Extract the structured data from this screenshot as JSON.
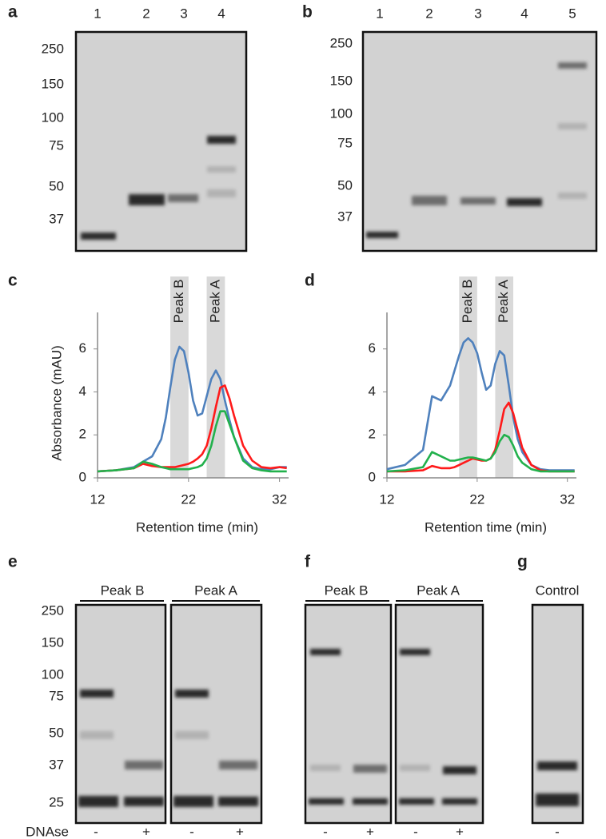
{
  "panels": {
    "a": {
      "label": "a",
      "lanes": [
        "1",
        "2",
        "3",
        "4"
      ],
      "markers": [
        "250",
        "150",
        "100",
        "75",
        "50",
        "37"
      ]
    },
    "b": {
      "label": "b",
      "lanes": [
        "1",
        "2",
        "3",
        "4",
        "5"
      ],
      "markers": [
        "250",
        "150",
        "100",
        "75",
        "50",
        "37"
      ]
    },
    "e": {
      "label": "e",
      "groups": [
        "Peak B",
        "Peak A"
      ],
      "markers": [
        "250",
        "150",
        "100",
        "75",
        "50",
        "37",
        "25"
      ],
      "row_label": "DNAse",
      "treatments": [
        "-",
        "+",
        "-",
        "+"
      ]
    },
    "f": {
      "label": "f",
      "groups": [
        "Peak B",
        "Peak A"
      ],
      "treatments": [
        "-",
        "+",
        "-",
        "+"
      ]
    },
    "g": {
      "label": "g",
      "groups": [
        "Control"
      ],
      "treatments": [
        "-"
      ]
    }
  },
  "chart_data": [
    {
      "type": "line",
      "panel_label": "c",
      "xlabel": "Retention time (min)",
      "ylabel": "Absorbance (mAU)",
      "x": [
        12,
        14,
        16,
        17,
        18,
        19,
        19.5,
        20,
        20.5,
        21,
        21.5,
        22,
        22.5,
        23,
        23.5,
        24,
        24.5,
        25,
        25.5,
        26,
        26.5,
        27,
        28,
        29,
        30,
        31,
        32,
        32.8
      ],
      "xlim": [
        12,
        33
      ],
      "xticks": [
        12,
        22,
        32
      ],
      "ylim": [
        0,
        7.7
      ],
      "yticks": [
        0,
        2,
        4,
        6
      ],
      "bands": [
        {
          "label": "Peak B",
          "x": [
            20,
            22
          ]
        },
        {
          "label": "Peak A",
          "x": [
            24,
            26
          ]
        }
      ],
      "series": [
        {
          "color": "#4f81bd",
          "values": [
            0.3,
            0.35,
            0.5,
            0.75,
            1.0,
            1.8,
            2.8,
            4.2,
            5.5,
            6.1,
            5.9,
            4.9,
            3.6,
            2.9,
            3.0,
            3.8,
            4.6,
            5.0,
            4.6,
            3.6,
            2.7,
            1.9,
            0.9,
            0.5,
            0.4,
            0.4,
            0.5,
            0.5
          ]
        },
        {
          "color": "#ff1a1a",
          "values": [
            0.3,
            0.35,
            0.45,
            0.65,
            0.55,
            0.5,
            0.5,
            0.5,
            0.5,
            0.55,
            0.6,
            0.65,
            0.75,
            0.9,
            1.1,
            1.5,
            2.3,
            3.3,
            4.2,
            4.3,
            3.7,
            2.9,
            1.5,
            0.8,
            0.5,
            0.45,
            0.5,
            0.45
          ]
        },
        {
          "color": "#22b14c",
          "values": [
            0.3,
            0.35,
            0.45,
            0.75,
            0.65,
            0.5,
            0.45,
            0.4,
            0.4,
            0.4,
            0.4,
            0.4,
            0.45,
            0.5,
            0.6,
            0.9,
            1.5,
            2.4,
            3.1,
            3.1,
            2.5,
            1.9,
            0.8,
            0.45,
            0.35,
            0.3,
            0.3,
            0.3
          ]
        }
      ]
    },
    {
      "type": "line",
      "panel_label": "d",
      "xlabel": "Retention time (min)",
      "x": [
        12,
        14,
        16,
        17,
        18,
        19,
        19.5,
        20,
        20.5,
        21,
        21.5,
        22,
        22.5,
        23,
        23.5,
        24,
        24.5,
        25,
        25.5,
        26,
        26.5,
        27,
        28,
        29,
        30,
        31,
        32,
        32.8
      ],
      "xlim": [
        12,
        33
      ],
      "xticks": [
        12,
        22,
        32
      ],
      "ylim": [
        0,
        7.7
      ],
      "yticks": [
        0,
        2,
        4,
        6
      ],
      "bands": [
        {
          "label": "Peak B",
          "x": [
            20,
            22
          ]
        },
        {
          "label": "Peak A",
          "x": [
            24,
            26
          ]
        }
      ],
      "series": [
        {
          "color": "#4f81bd",
          "values": [
            0.4,
            0.6,
            1.3,
            3.8,
            3.6,
            4.3,
            5.0,
            5.7,
            6.3,
            6.5,
            6.3,
            5.8,
            4.9,
            4.1,
            4.3,
            5.3,
            5.9,
            5.7,
            4.3,
            2.8,
            1.8,
            1.2,
            0.6,
            0.4,
            0.35,
            0.35,
            0.35,
            0.35
          ]
        },
        {
          "color": "#ff1a1a",
          "values": [
            0.3,
            0.3,
            0.35,
            0.55,
            0.45,
            0.45,
            0.5,
            0.6,
            0.7,
            0.8,
            0.9,
            0.85,
            0.8,
            0.8,
            0.9,
            1.3,
            2.2,
            3.2,
            3.5,
            3.0,
            2.2,
            1.4,
            0.6,
            0.35,
            0.3,
            0.3,
            0.3,
            0.3
          ]
        },
        {
          "color": "#22b14c",
          "values": [
            0.3,
            0.35,
            0.5,
            1.2,
            1.0,
            0.8,
            0.8,
            0.85,
            0.9,
            0.95,
            0.95,
            0.9,
            0.85,
            0.8,
            0.9,
            1.2,
            1.7,
            2.0,
            1.9,
            1.5,
            1.0,
            0.7,
            0.4,
            0.3,
            0.3,
            0.3,
            0.3,
            0.3
          ]
        }
      ]
    }
  ]
}
